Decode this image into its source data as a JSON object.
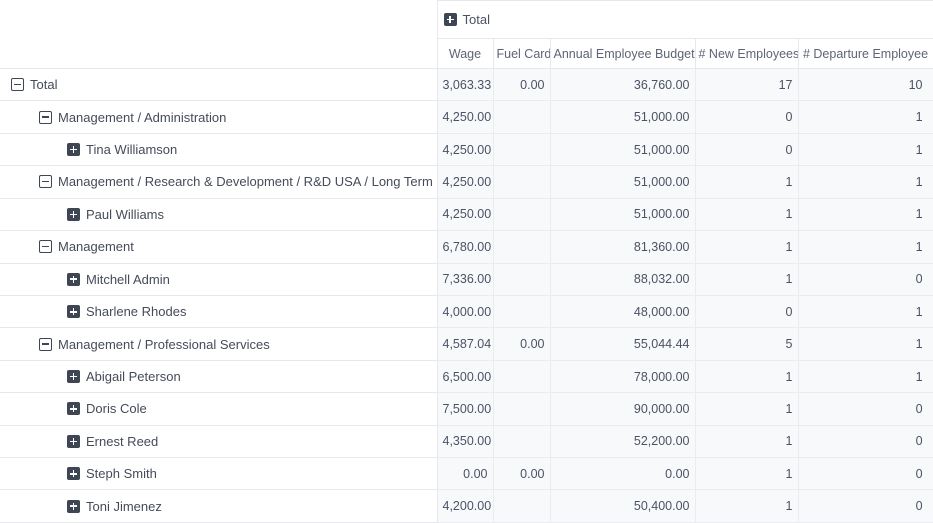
{
  "pivot": {
    "column_group": {
      "label": "Total",
      "icon": "plus-square-icon"
    },
    "measure_headers": [
      "Wage",
      "Fuel Card",
      "Annual Employee Budget",
      "# New Employees",
      "# Departure Employee"
    ],
    "rows": [
      {
        "label": "Total",
        "level": 0,
        "toggle": "collapse",
        "values": [
          "3,063.33",
          "0.00",
          "36,760.00",
          "17",
          "10"
        ]
      },
      {
        "label": "Management / Administration",
        "level": 1,
        "toggle": "collapse",
        "values": [
          "4,250.00",
          "",
          "51,000.00",
          "0",
          "1"
        ]
      },
      {
        "label": "Tina Williamson",
        "level": 2,
        "toggle": "expand",
        "values": [
          "4,250.00",
          "",
          "51,000.00",
          "0",
          "1"
        ]
      },
      {
        "label": "Management / Research & Development / R&D USA / Long Term Projects",
        "level": 1,
        "toggle": "collapse",
        "values": [
          "4,250.00",
          "",
          "51,000.00",
          "1",
          "1"
        ]
      },
      {
        "label": "Paul Williams",
        "level": 2,
        "toggle": "expand",
        "values": [
          "4,250.00",
          "",
          "51,000.00",
          "1",
          "1"
        ]
      },
      {
        "label": "Management",
        "level": 1,
        "toggle": "collapse",
        "values": [
          "6,780.00",
          "",
          "81,360.00",
          "1",
          "1"
        ]
      },
      {
        "label": "Mitchell Admin",
        "level": 2,
        "toggle": "expand",
        "values": [
          "7,336.00",
          "",
          "88,032.00",
          "1",
          "0"
        ]
      },
      {
        "label": "Sharlene Rhodes",
        "level": 2,
        "toggle": "expand",
        "values": [
          "4,000.00",
          "",
          "48,000.00",
          "0",
          "1"
        ]
      },
      {
        "label": "Management / Professional Services",
        "level": 1,
        "toggle": "collapse",
        "values": [
          "4,587.04",
          "0.00",
          "55,044.44",
          "5",
          "1"
        ]
      },
      {
        "label": "Abigail Peterson",
        "level": 2,
        "toggle": "expand",
        "values": [
          "6,500.00",
          "",
          "78,000.00",
          "1",
          "1"
        ]
      },
      {
        "label": "Doris Cole",
        "level": 2,
        "toggle": "expand",
        "values": [
          "7,500.00",
          "",
          "90,000.00",
          "1",
          "0"
        ]
      },
      {
        "label": "Ernest Reed",
        "level": 2,
        "toggle": "expand",
        "values": [
          "4,350.00",
          "",
          "52,200.00",
          "1",
          "0"
        ]
      },
      {
        "label": "Steph Smith",
        "level": 2,
        "toggle": "expand",
        "values": [
          "0.00",
          "0.00",
          "0.00",
          "1",
          "0"
        ]
      },
      {
        "label": "Toni Jimenez",
        "level": 2,
        "toggle": "expand",
        "values": [
          "4,200.00",
          "",
          "50,400.00",
          "1",
          "0"
        ]
      }
    ],
    "icons": {
      "expand": "plus-square-icon",
      "collapse": "minus-square-icon"
    },
    "colors": {
      "icon": "#3e4553",
      "text": "#4b5263",
      "muted_header_text": "#5d6475",
      "data_cell_bg": "#f8f9fb",
      "border": "#e6e8ec"
    }
  }
}
